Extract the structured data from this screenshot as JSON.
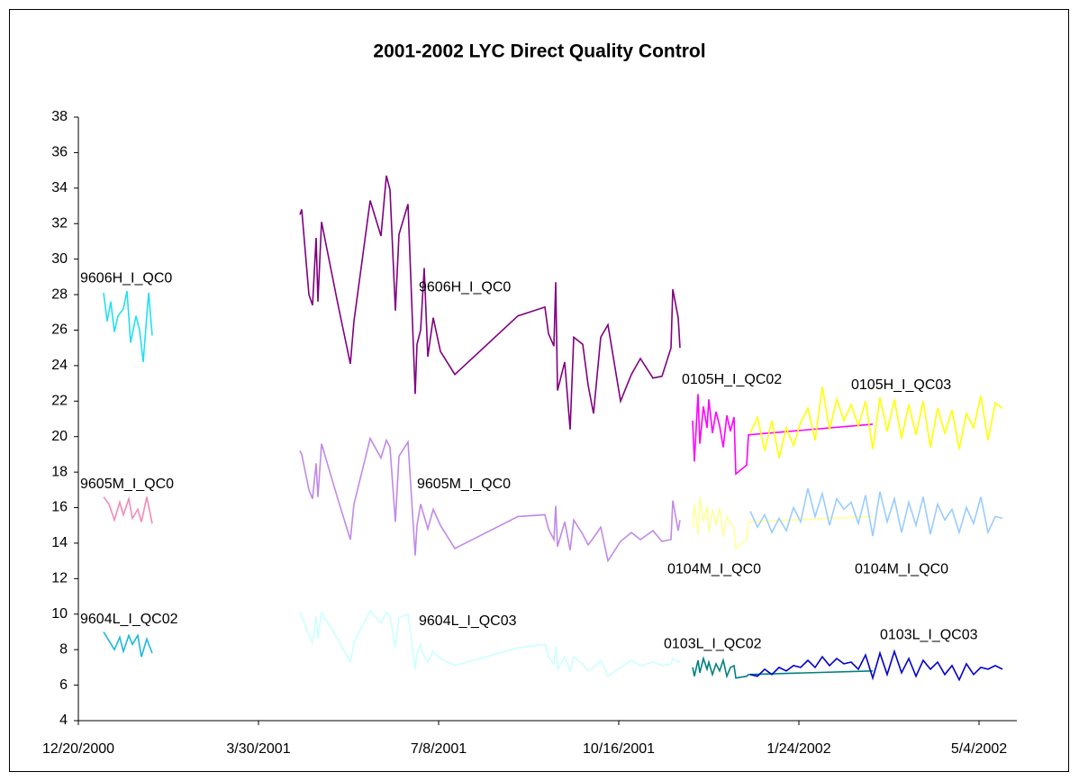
{
  "chart_data": {
    "type": "line",
    "title": "2001-2002 LYC Direct Quality Control",
    "xlim": [
      "2000-12-20",
      "2002-05-25"
    ],
    "xticks": [
      {
        "value": "2000-12-20",
        "label": "12/20/2000"
      },
      {
        "value": "2001-03-30",
        "label": "3/30/2001"
      },
      {
        "value": "2001-07-08",
        "label": "7/8/2001"
      },
      {
        "value": "2001-10-16",
        "label": "10/16/2001"
      },
      {
        "value": "2002-01-24",
        "label": "1/24/2002"
      },
      {
        "value": "2002-05-04",
        "label": "5/4/2002"
      }
    ],
    "ylim": [
      4,
      38
    ],
    "yticks": [
      4,
      6,
      8,
      10,
      12,
      14,
      16,
      18,
      20,
      22,
      24,
      26,
      28,
      30,
      32,
      34,
      36,
      38
    ],
    "grid": false,
    "series": [
      {
        "name": "9606H_I_QC0",
        "color": "#22e0ee",
        "label_x": "2000-12-21",
        "label_y": 28.9,
        "x": [
          "2001-01-03",
          "2001-01-05",
          "2001-01-07",
          "2001-01-09",
          "2001-01-11",
          "2001-01-14",
          "2001-01-16",
          "2001-01-18",
          "2001-01-21",
          "2001-01-23",
          "2001-01-25",
          "2001-01-28",
          "2001-01-30"
        ],
        "values": [
          28.1,
          26.5,
          27.6,
          25.9,
          26.8,
          27.2,
          28.2,
          25.3,
          26.8,
          26.0,
          24.2,
          28.1,
          25.7
        ]
      },
      {
        "name": "9605M_I_QC0",
        "color": "#f08cb8",
        "label_x": "2000-12-21",
        "label_y": 17.3,
        "x": [
          "2001-01-03",
          "2001-01-06",
          "2001-01-09",
          "2001-01-12",
          "2001-01-14",
          "2001-01-17",
          "2001-01-19",
          "2001-01-22",
          "2001-01-24",
          "2001-01-27",
          "2001-01-30"
        ],
        "values": [
          16.6,
          16.2,
          15.3,
          16.3,
          15.6,
          16.5,
          15.4,
          15.9,
          15.2,
          16.6,
          15.1
        ]
      },
      {
        "name": "9604L_I_QC02",
        "color": "#1ab8e0",
        "label_x": "2000-12-21",
        "label_y": 9.7,
        "x": [
          "2001-01-03",
          "2001-01-06",
          "2001-01-09",
          "2001-01-12",
          "2001-01-14",
          "2001-01-17",
          "2001-01-19",
          "2001-01-22",
          "2001-01-24",
          "2001-01-27",
          "2001-01-30"
        ],
        "values": [
          9.0,
          8.5,
          8.0,
          8.7,
          7.9,
          8.8,
          8.3,
          8.8,
          7.6,
          8.6,
          7.8
        ]
      },
      {
        "name": "9606H_I_QC0",
        "color": "#800080",
        "label_x": "2001-06-27",
        "label_y": 28.4,
        "x": [
          "2001-04-22",
          "2001-04-23",
          "2001-04-27",
          "2001-04-29",
          "2001-05-01",
          "2001-05-02",
          "2001-05-04",
          "2001-05-13",
          "2001-05-20",
          "2001-05-22",
          "2001-05-31",
          "2001-06-06",
          "2001-06-09",
          "2001-06-11",
          "2001-06-14",
          "2001-06-16",
          "2001-06-21",
          "2001-06-25",
          "2001-06-26",
          "2001-06-28",
          "2001-06-30",
          "2001-07-02",
          "2001-07-05",
          "2001-07-09",
          "2001-07-17",
          "2001-08-21",
          "2001-09-05",
          "2001-09-07",
          "2001-09-10",
          "2001-09-11",
          "2001-09-12",
          "2001-09-16",
          "2001-09-19",
          "2001-09-21",
          "2001-09-26",
          "2001-09-29",
          "2001-10-02",
          "2001-10-06",
          "2001-10-10",
          "2001-10-17",
          "2001-10-23",
          "2001-10-28",
          "2001-11-04",
          "2001-11-09",
          "2001-11-14",
          "2001-11-15",
          "2001-11-18",
          "2001-11-19"
        ],
        "values": [
          32.5,
          32.8,
          28.0,
          27.4,
          31.2,
          27.6,
          32.1,
          27.5,
          24.1,
          26.5,
          33.3,
          31.3,
          34.7,
          33.9,
          27.1,
          31.4,
          33.1,
          22.4,
          25.2,
          26.0,
          29.5,
          24.5,
          26.7,
          24.8,
          23.5,
          26.8,
          27.3,
          25.8,
          25.1,
          28.7,
          22.6,
          24.2,
          20.4,
          25.6,
          25.2,
          22.9,
          21.3,
          25.6,
          26.3,
          22.0,
          23.5,
          24.4,
          23.3,
          23.4,
          25.0,
          28.3,
          26.7,
          25.0
        ]
      },
      {
        "name": "9605M_I_QC0",
        "color": "#c08ae8",
        "label_x": "2001-06-26",
        "label_y": 17.3,
        "x": [
          "2001-04-22",
          "2001-04-23",
          "2001-04-27",
          "2001-04-29",
          "2001-05-01",
          "2001-05-02",
          "2001-05-04",
          "2001-05-13",
          "2001-05-20",
          "2001-05-22",
          "2001-05-31",
          "2001-06-06",
          "2001-06-09",
          "2001-06-11",
          "2001-06-14",
          "2001-06-16",
          "2001-06-21",
          "2001-06-25",
          "2001-06-26",
          "2001-06-28",
          "2001-06-30",
          "2001-07-02",
          "2001-07-05",
          "2001-07-09",
          "2001-07-17",
          "2001-08-21",
          "2001-09-05",
          "2001-09-07",
          "2001-09-10",
          "2001-09-11",
          "2001-09-12",
          "2001-09-16",
          "2001-09-19",
          "2001-09-21",
          "2001-09-26",
          "2001-09-29",
          "2001-10-02",
          "2001-10-06",
          "2001-10-10",
          "2001-10-17",
          "2001-10-23",
          "2001-10-28",
          "2001-11-04",
          "2001-11-09",
          "2001-11-14",
          "2001-11-15",
          "2001-11-18",
          "2001-11-19"
        ],
        "values": [
          19.2,
          19.0,
          17.0,
          16.5,
          18.5,
          16.6,
          19.6,
          16.5,
          14.2,
          16.2,
          19.9,
          18.8,
          19.8,
          19.4,
          15.2,
          18.9,
          19.7,
          13.3,
          15.0,
          16.2,
          15.5,
          14.8,
          15.9,
          15.0,
          13.7,
          15.5,
          15.6,
          14.8,
          14.2,
          16.1,
          13.8,
          15.2,
          13.6,
          15.3,
          14.5,
          13.9,
          14.3,
          14.9,
          13.0,
          14.1,
          14.6,
          14.2,
          14.7,
          14.1,
          14.2,
          16.4,
          14.7,
          15.3
        ]
      },
      {
        "name": "9604L_I_QC03",
        "color": "#ccffff",
        "label_x": "2001-06-27",
        "label_y": 9.6,
        "x": [
          "2001-04-22",
          "2001-04-23",
          "2001-04-27",
          "2001-04-29",
          "2001-05-01",
          "2001-05-02",
          "2001-05-04",
          "2001-05-13",
          "2001-05-20",
          "2001-05-22",
          "2001-05-31",
          "2001-06-06",
          "2001-06-09",
          "2001-06-11",
          "2001-06-14",
          "2001-06-16",
          "2001-06-21",
          "2001-06-25",
          "2001-06-26",
          "2001-06-28",
          "2001-06-30",
          "2001-07-02",
          "2001-07-05",
          "2001-07-09",
          "2001-07-17",
          "2001-08-21",
          "2001-09-05",
          "2001-09-07",
          "2001-09-10",
          "2001-09-11",
          "2001-09-12",
          "2001-09-16",
          "2001-09-19",
          "2001-09-21",
          "2001-09-26",
          "2001-09-29",
          "2001-10-02",
          "2001-10-06",
          "2001-10-10",
          "2001-10-17",
          "2001-10-23",
          "2001-10-28",
          "2001-11-04",
          "2001-11-09",
          "2001-11-14",
          "2001-11-15",
          "2001-11-18",
          "2001-11-19"
        ],
        "values": [
          10.1,
          9.9,
          8.8,
          8.4,
          9.9,
          8.6,
          10.1,
          8.6,
          7.3,
          8.4,
          10.2,
          9.5,
          10.1,
          9.9,
          8.1,
          9.8,
          10.0,
          6.9,
          7.8,
          8.3,
          7.6,
          7.3,
          7.9,
          7.5,
          7.1,
          8.1,
          8.3,
          7.6,
          7.2,
          8.2,
          6.9,
          7.6,
          6.8,
          7.6,
          7.2,
          6.8,
          7.0,
          7.4,
          6.5,
          7.0,
          7.4,
          7.1,
          7.3,
          7.1,
          7.2,
          7.5,
          7.3,
          7.4
        ]
      },
      {
        "name": "0105H_I_QC02",
        "color": "#ff00ff",
        "label_x": "2001-11-20",
        "label_y": 23.2,
        "x": [
          "2001-11-26",
          "2001-11-27",
          "2001-11-29",
          "2001-11-30",
          "2001-12-02",
          "2001-12-04",
          "2001-12-05",
          "2001-12-07",
          "2001-12-09",
          "2001-12-11",
          "2001-12-13",
          "2001-12-15",
          "2001-12-17",
          "2001-12-19",
          "2001-12-20",
          "2001-12-26",
          "2001-12-27",
          "2002-03-06"
        ],
        "values": [
          20.9,
          18.6,
          22.4,
          19.6,
          21.7,
          20.5,
          22.1,
          20.2,
          21.4,
          20.6,
          19.4,
          21.2,
          20.3,
          21.1,
          17.9,
          18.4,
          20.1,
          20.7
        ]
      },
      {
        "name": "0105H_I_QC03",
        "color": "#ffff00",
        "label_x": "2002-02-22",
        "label_y": 22.9,
        "x": [
          "2001-12-28",
          "2002-01-01",
          "2002-01-05",
          "2002-01-09",
          "2002-01-13",
          "2002-01-17",
          "2002-01-21",
          "2002-01-25",
          "2002-01-29",
          "2002-02-02",
          "2002-02-06",
          "2002-02-10",
          "2002-02-14",
          "2002-02-18",
          "2002-02-22",
          "2002-02-26",
          "2002-03-02",
          "2002-03-06",
          "2002-03-10",
          "2002-03-14",
          "2002-03-18",
          "2002-03-22",
          "2002-03-26",
          "2002-03-30",
          "2002-04-03",
          "2002-04-07",
          "2002-04-11",
          "2002-04-15",
          "2002-04-19",
          "2002-04-23",
          "2002-04-27",
          "2002-05-01",
          "2002-05-05",
          "2002-05-09",
          "2002-05-13",
          "2002-05-17"
        ],
        "values": [
          20.2,
          21.1,
          19.2,
          20.9,
          18.8,
          20.5,
          19.5,
          20.8,
          21.6,
          19.8,
          22.8,
          20.4,
          22.1,
          20.9,
          21.8,
          20.6,
          22.0,
          19.3,
          22.2,
          20.3,
          22.1,
          19.9,
          21.8,
          20.1,
          22.0,
          19.4,
          21.6,
          20.2,
          21.5,
          19.3,
          21.3,
          20.5,
          22.3,
          19.8,
          21.9,
          21.6
        ]
      },
      {
        "name": "0104M_I_QC0",
        "color": "#ffff99",
        "label_x": "2001-11-12",
        "label_y": 12.5,
        "x": [
          "2001-11-26",
          "2001-11-27",
          "2001-11-29",
          "2001-11-30",
          "2001-12-02",
          "2001-12-04",
          "2001-12-05",
          "2001-12-07",
          "2001-12-09",
          "2001-12-11",
          "2001-12-13",
          "2001-12-15",
          "2001-12-17",
          "2001-12-19",
          "2001-12-20",
          "2001-12-26",
          "2001-12-27",
          "2002-03-06"
        ],
        "values": [
          14.9,
          16.2,
          14.5,
          16.6,
          15.2,
          16.1,
          14.6,
          15.9,
          15.0,
          16.0,
          14.4,
          15.5,
          15.1,
          14.9,
          13.7,
          14.2,
          15.2,
          15.5
        ]
      },
      {
        "name": "0104M_I_QC0",
        "color": "#99ccff",
        "label_x": "2002-02-24",
        "label_y": 12.5,
        "x": [
          "2001-12-28",
          "2002-01-01",
          "2002-01-05",
          "2002-01-09",
          "2002-01-13",
          "2002-01-17",
          "2002-01-21",
          "2002-01-25",
          "2002-01-29",
          "2002-02-02",
          "2002-02-06",
          "2002-02-10",
          "2002-02-14",
          "2002-02-18",
          "2002-02-22",
          "2002-02-26",
          "2002-03-02",
          "2002-03-06",
          "2002-03-10",
          "2002-03-14",
          "2002-03-18",
          "2002-03-22",
          "2002-03-26",
          "2002-03-30",
          "2002-04-03",
          "2002-04-07",
          "2002-04-11",
          "2002-04-15",
          "2002-04-19",
          "2002-04-23",
          "2002-04-27",
          "2002-05-01",
          "2002-05-05",
          "2002-05-09",
          "2002-05-13",
          "2002-05-17"
        ],
        "values": [
          15.8,
          14.9,
          15.6,
          14.6,
          15.4,
          14.7,
          16.0,
          15.2,
          17.1,
          15.5,
          16.8,
          15.0,
          16.5,
          15.9,
          16.3,
          15.1,
          16.7,
          14.4,
          16.9,
          15.2,
          16.5,
          14.6,
          16.3,
          15.0,
          16.6,
          14.5,
          16.2,
          15.3,
          15.9,
          14.6,
          16.0,
          15.1,
          16.6,
          14.6,
          15.5,
          15.4
        ]
      },
      {
        "name": "0103L_I_QC02",
        "color": "#008080",
        "label_x": "2001-11-10",
        "label_y": 8.3,
        "x": [
          "2001-11-26",
          "2001-11-27",
          "2001-11-29",
          "2001-11-30",
          "2001-12-02",
          "2001-12-04",
          "2001-12-05",
          "2001-12-07",
          "2001-12-09",
          "2001-12-11",
          "2001-12-13",
          "2001-12-15",
          "2001-12-17",
          "2001-12-19",
          "2001-12-20",
          "2001-12-26",
          "2001-12-27",
          "2002-03-06"
        ],
        "values": [
          7.0,
          6.5,
          7.4,
          6.7,
          7.5,
          6.9,
          7.3,
          6.6,
          7.2,
          6.8,
          7.4,
          6.5,
          7.0,
          7.1,
          6.4,
          6.5,
          6.6,
          6.8
        ]
      },
      {
        "name": "0103L_I_QC03",
        "color": "#0000cc",
        "label_x": "2002-03-10",
        "label_y": 8.8,
        "x": [
          "2001-12-28",
          "2002-01-01",
          "2002-01-05",
          "2002-01-09",
          "2002-01-13",
          "2002-01-17",
          "2002-01-21",
          "2002-01-25",
          "2002-01-29",
          "2002-02-02",
          "2002-02-06",
          "2002-02-10",
          "2002-02-14",
          "2002-02-18",
          "2002-02-22",
          "2002-02-26",
          "2002-03-02",
          "2002-03-06",
          "2002-03-10",
          "2002-03-14",
          "2002-03-18",
          "2002-03-22",
          "2002-03-26",
          "2002-03-30",
          "2002-04-03",
          "2002-04-07",
          "2002-04-11",
          "2002-04-15",
          "2002-04-19",
          "2002-04-23",
          "2002-04-27",
          "2002-05-01",
          "2002-05-05",
          "2002-05-09",
          "2002-05-13",
          "2002-05-17"
        ],
        "values": [
          6.6,
          6.5,
          6.9,
          6.6,
          7.0,
          6.8,
          7.1,
          7.0,
          7.4,
          7.0,
          7.6,
          7.1,
          7.5,
          7.2,
          7.3,
          6.9,
          7.7,
          6.4,
          7.8,
          6.6,
          7.9,
          6.7,
          7.5,
          6.5,
          7.4,
          6.9,
          7.3,
          6.6,
          7.1,
          6.3,
          7.2,
          6.6,
          7.0,
          6.9,
          7.1,
          6.9
        ]
      }
    ]
  }
}
